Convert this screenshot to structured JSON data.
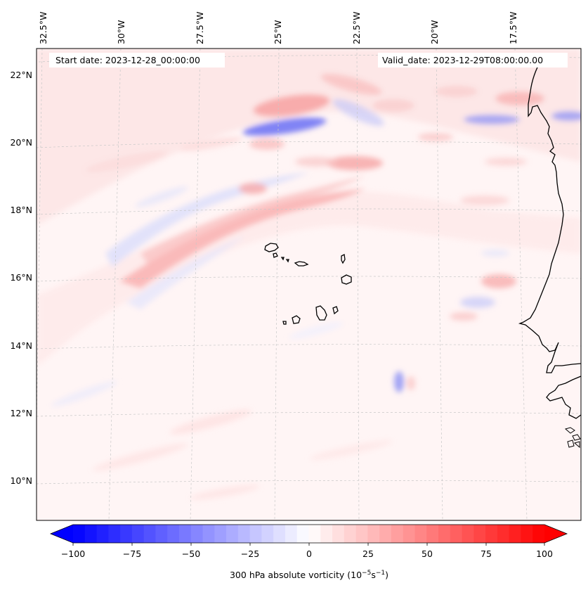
{
  "map": {
    "start_date": "Start date: 2023-12-28_00:00:00",
    "valid_date": "Valid_date: 2023-12-29T08:00:00.00",
    "lon_labels": [
      "32.5°W",
      "30°W",
      "27.5°W",
      "25°W",
      "22.5°W",
      "20°W",
      "17.5°W"
    ],
    "lat_labels": [
      "22°N",
      "20°N",
      "18°N",
      "16°N",
      "14°N",
      "12°N",
      "10°N"
    ],
    "colors": {
      "negative_max": "#0000ff",
      "neutral": "#ffffff",
      "positive_max": "#ff0000",
      "coastline": "#000000",
      "gridline": "#c8c8c8"
    }
  },
  "colorbar": {
    "ticks": [
      "−100",
      "−75",
      "−50",
      "−25",
      "0",
      "25",
      "50",
      "75",
      "100"
    ],
    "label_prefix": "300 hPa absolute vorticity (10",
    "label_exp1": "−5",
    "label_mid": "s",
    "label_exp2": "−1",
    "label_suffix": ")"
  }
}
